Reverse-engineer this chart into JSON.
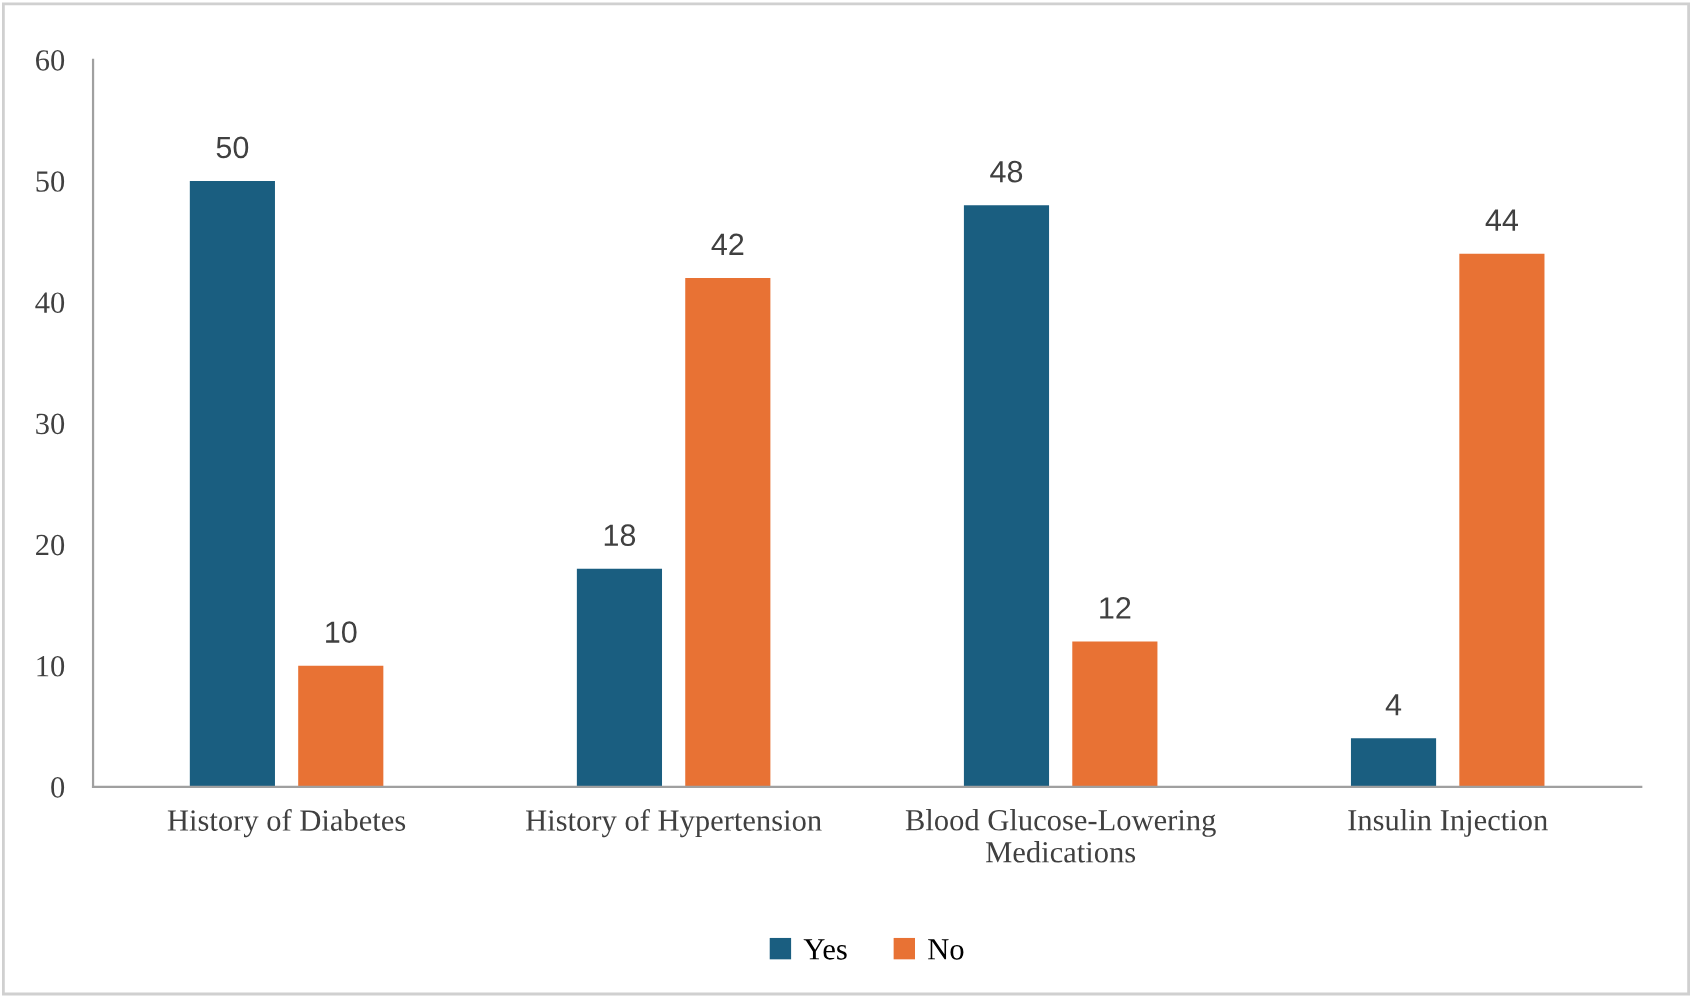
{
  "chart_data": {
    "type": "bar",
    "categories": [
      "History of Diabetes",
      "History of Hypertension",
      "Blood Glucose-Lowering\nMedications",
      "Insulin Injection"
    ],
    "series": [
      {
        "name": "Yes",
        "color": "#1a5e80",
        "values": [
          50,
          18,
          48,
          4
        ]
      },
      {
        "name": "No",
        "color": "#e87234",
        "values": [
          10,
          42,
          12,
          44
        ]
      }
    ],
    "ylim": [
      0,
      60
    ],
    "yticks": [
      0,
      10,
      20,
      30,
      40,
      50,
      60
    ],
    "data_labels": true,
    "grid": false,
    "legend": "bottom"
  }
}
